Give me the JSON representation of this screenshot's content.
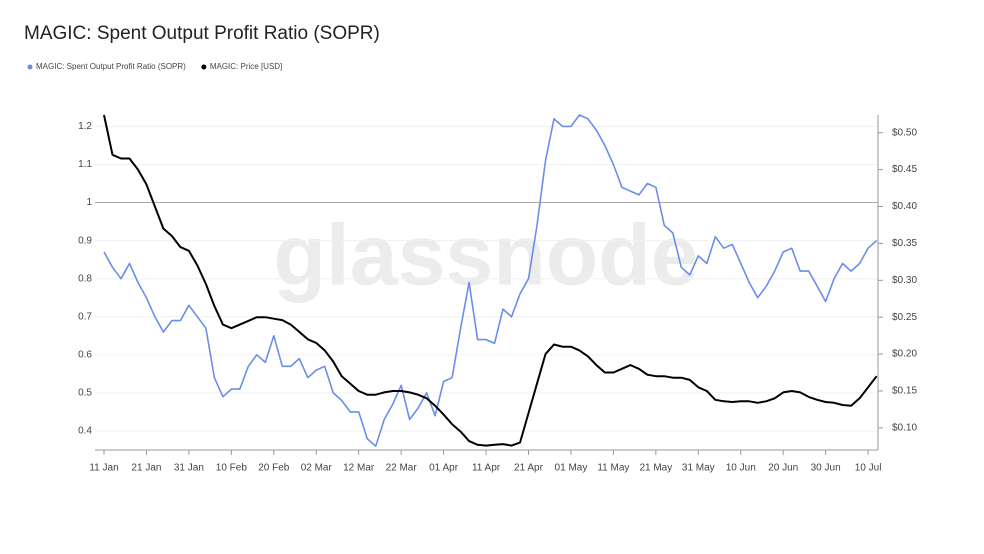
{
  "chart_data": {
    "type": "line",
    "title": "MAGIC: Spent Output Profit Ratio (SOPR)",
    "watermark": "glassnode",
    "categories": [
      "11 Jan",
      null,
      null,
      null,
      null,
      "21 Jan",
      null,
      null,
      null,
      null,
      "31 Jan",
      null,
      null,
      null,
      null,
      "10 Feb",
      null,
      null,
      null,
      null,
      "20 Feb",
      null,
      null,
      null,
      null,
      "02 Mar",
      null,
      null,
      null,
      null,
      "12 Mar",
      null,
      null,
      null,
      null,
      "22 Mar",
      null,
      null,
      null,
      null,
      "01 Apr",
      null,
      null,
      null,
      null,
      "11 Apr",
      null,
      null,
      null,
      null,
      "21 Apr",
      null,
      null,
      null,
      null,
      "01 May",
      null,
      null,
      null,
      null,
      "11 May",
      null,
      null,
      null,
      null,
      "21 May",
      null,
      null,
      null,
      null,
      "31 May",
      null,
      null,
      null,
      null,
      "10 Jun",
      null,
      null,
      null,
      null,
      "20 Jun",
      null,
      null,
      null,
      null,
      "30 Jun",
      null,
      null,
      null,
      null,
      "10 Jul",
      null
    ],
    "series": [
      {
        "name": "MAGIC: Spent Output Profit Ratio (SOPR)",
        "color": "#6b8ee8",
        "axis": "y",
        "values": [
          0.87,
          0.83,
          0.8,
          0.84,
          0.79,
          0.75,
          0.7,
          0.66,
          0.69,
          0.69,
          0.73,
          0.7,
          0.67,
          0.54,
          0.49,
          0.51,
          0.51,
          0.57,
          0.6,
          0.58,
          0.65,
          0.57,
          0.57,
          0.59,
          0.54,
          0.56,
          0.57,
          0.5,
          0.48,
          0.45,
          0.45,
          0.38,
          0.36,
          0.43,
          0.47,
          0.52,
          0.43,
          0.46,
          0.5,
          0.44,
          0.53,
          0.54,
          0.67,
          0.79,
          0.64,
          0.64,
          0.63,
          0.72,
          0.7,
          0.76,
          0.8,
          0.94,
          1.11,
          1.22,
          1.2,
          1.2,
          1.23,
          1.22,
          1.19,
          1.15,
          1.1,
          1.04,
          1.03,
          1.02,
          1.05,
          1.04,
          0.94,
          0.92,
          0.83,
          0.81,
          0.86,
          0.84,
          0.91,
          0.88,
          0.89,
          0.84,
          0.79,
          0.75,
          0.78,
          0.82,
          0.87,
          0.88,
          0.82,
          0.82,
          0.78,
          0.74,
          0.8,
          0.84,
          0.82,
          0.84,
          0.88,
          0.9
        ]
      },
      {
        "name": "MAGIC: Price [USD]",
        "color": "#000000",
        "axis": "y2",
        "values": [
          0.524,
          0.47,
          0.465,
          0.465,
          0.45,
          0.43,
          0.4,
          0.37,
          0.36,
          0.345,
          0.34,
          0.32,
          0.295,
          0.265,
          0.24,
          0.235,
          0.24,
          0.245,
          0.25,
          0.25,
          0.248,
          0.246,
          0.24,
          0.23,
          0.22,
          0.215,
          0.205,
          0.19,
          0.17,
          0.16,
          0.15,
          0.145,
          0.145,
          0.148,
          0.15,
          0.15,
          0.148,
          0.145,
          0.14,
          0.13,
          0.118,
          0.105,
          0.095,
          0.082,
          0.077,
          0.076,
          0.077,
          0.078,
          0.076,
          0.08,
          0.12,
          0.16,
          0.2,
          0.213,
          0.21,
          0.21,
          0.205,
          0.197,
          0.185,
          0.175,
          0.175,
          0.18,
          0.185,
          0.18,
          0.172,
          0.17,
          0.17,
          0.168,
          0.168,
          0.165,
          0.155,
          0.15,
          0.138,
          0.136,
          0.135,
          0.136,
          0.136,
          0.134,
          0.136,
          0.14,
          0.148,
          0.15,
          0.148,
          0.142,
          0.138,
          0.135,
          0.134,
          0.131,
          0.13,
          0.14,
          0.155,
          0.17
        ]
      }
    ],
    "ylim": [
      0.35,
      1.23
    ],
    "yticks": [
      0.4,
      0.5,
      0.6,
      0.7,
      0.8,
      0.9,
      1,
      1.1,
      1.2
    ],
    "y2lim": [
      0.07,
      0.524
    ],
    "y2ticks": [
      {
        "value": 0.1,
        "label": "$0.10"
      },
      {
        "value": 0.15,
        "label": "$0.15"
      },
      {
        "value": 0.2,
        "label": "$0.20"
      },
      {
        "value": 0.25,
        "label": "$0.25"
      },
      {
        "value": 0.3,
        "label": "$0.30"
      },
      {
        "value": 0.35,
        "label": "$0.35"
      },
      {
        "value": 0.4,
        "label": "$0.40"
      },
      {
        "value": 0.45,
        "label": "$0.45"
      },
      {
        "value": 0.5,
        "label": "$0.50"
      }
    ],
    "reference_line": 1,
    "grid": true
  }
}
